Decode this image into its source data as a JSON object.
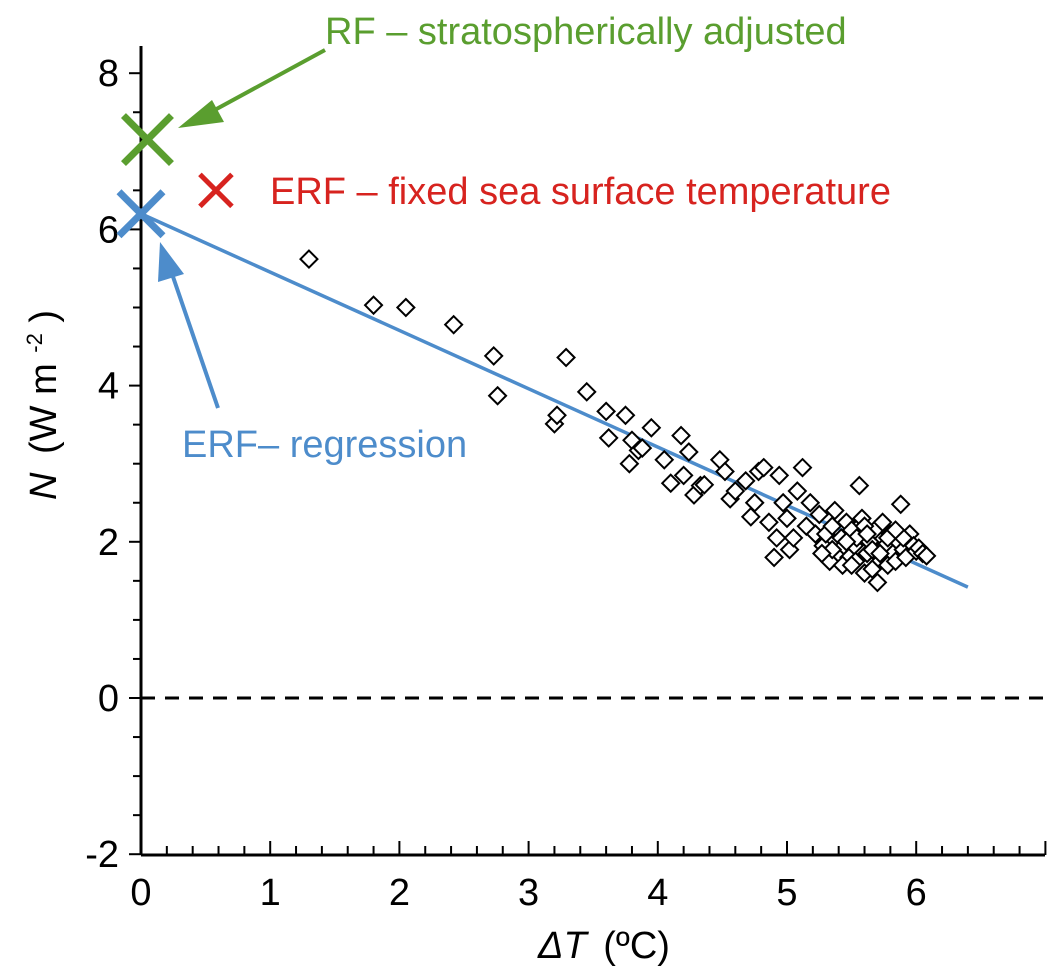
{
  "chart_data": {
    "type": "scatter",
    "xlabel": {
      "symbol": "ΔT",
      "unit": "(ºC)"
    },
    "ylabel": {
      "symbol": "N",
      "unit_pre": "(W m",
      "unit_sup": "-2",
      "unit_post": ")"
    },
    "xlim": [
      0,
      7
    ],
    "ylim": [
      -2,
      8.4
    ],
    "x_ticks": [
      0,
      1,
      2,
      3,
      4,
      5,
      6
    ],
    "y_ticks": [
      -2,
      0,
      2,
      4,
      6,
      8
    ],
    "x_tick_labels": [
      "0",
      "1",
      "2",
      "3",
      "4",
      "5",
      "6"
    ],
    "y_tick_labels": [
      "-2",
      "0",
      "2",
      "4",
      "6",
      "8"
    ],
    "zero_line": {
      "y": 0,
      "style": "dashed",
      "color": "#000000"
    },
    "regression_line": {
      "x": [
        0,
        6.4
      ],
      "y": [
        6.2,
        1.42
      ],
      "color": "#4d8ccb"
    },
    "markers": [
      {
        "name": "RF",
        "x": 0.05,
        "y": 7.15,
        "color": "#5a9e2f"
      },
      {
        "name": "ERF-fixed-SST",
        "x": 0.58,
        "y": 6.5,
        "color": "#d7231f"
      },
      {
        "name": "ERF-regression",
        "x": 0.0,
        "y": 6.2,
        "color": "#4d8ccb"
      }
    ],
    "annotations": [
      {
        "text": "RF – stratospherically adjusted",
        "color": "#5a9e2f"
      },
      {
        "text": "ERF – fixed sea surface temperature",
        "color": "#d7231f"
      },
      {
        "text": "ERF– regression",
        "color": "#4d8ccb"
      }
    ],
    "points": [
      [
        1.3,
        5.62
      ],
      [
        1.8,
        5.03
      ],
      [
        2.05,
        5.0
      ],
      [
        2.42,
        4.78
      ],
      [
        2.73,
        4.38
      ],
      [
        2.76,
        3.87
      ],
      [
        3.2,
        3.51
      ],
      [
        3.22,
        3.62
      ],
      [
        3.29,
        4.36
      ],
      [
        3.45,
        3.92
      ],
      [
        3.6,
        3.67
      ],
      [
        3.62,
        3.33
      ],
      [
        3.75,
        3.62
      ],
      [
        3.78,
        3.0
      ],
      [
        3.8,
        3.3
      ],
      [
        3.85,
        3.17
      ],
      [
        3.88,
        3.2
      ],
      [
        3.95,
        3.46
      ],
      [
        4.05,
        3.05
      ],
      [
        4.1,
        2.75
      ],
      [
        4.18,
        3.36
      ],
      [
        4.2,
        2.85
      ],
      [
        4.24,
        3.15
      ],
      [
        4.28,
        2.6
      ],
      [
        4.33,
        2.72
      ],
      [
        4.36,
        2.73
      ],
      [
        4.48,
        3.05
      ],
      [
        4.52,
        2.9
      ],
      [
        4.56,
        2.55
      ],
      [
        4.6,
        2.65
      ],
      [
        4.68,
        2.78
      ],
      [
        4.72,
        2.32
      ],
      [
        4.75,
        2.5
      ],
      [
        4.78,
        2.9
      ],
      [
        4.82,
        2.95
      ],
      [
        4.86,
        2.25
      ],
      [
        4.9,
        1.8
      ],
      [
        4.92,
        2.05
      ],
      [
        4.94,
        2.85
      ],
      [
        4.97,
        2.5
      ],
      [
        5.0,
        2.3
      ],
      [
        5.02,
        1.9
      ],
      [
        5.05,
        2.05
      ],
      [
        5.08,
        2.65
      ],
      [
        5.12,
        2.95
      ],
      [
        5.15,
        2.2
      ],
      [
        5.18,
        2.5
      ],
      [
        5.22,
        2.1
      ],
      [
        5.25,
        2.35
      ],
      [
        5.28,
        1.95
      ],
      [
        5.3,
        2.1
      ],
      [
        5.33,
        1.75
      ],
      [
        5.35,
        2.2
      ],
      [
        5.37,
        2.4
      ],
      [
        5.4,
        1.85
      ],
      [
        5.42,
        2.05
      ],
      [
        5.44,
        1.95
      ],
      [
        5.46,
        2.25
      ],
      [
        5.48,
        1.8
      ],
      [
        5.5,
        2.15
      ],
      [
        5.52,
        1.95
      ],
      [
        5.54,
        2.05
      ],
      [
        5.56,
        2.72
      ],
      [
        5.58,
        2.3
      ],
      [
        5.6,
        1.6
      ],
      [
        5.62,
        1.85
      ],
      [
        5.64,
        2.0
      ],
      [
        5.66,
        1.9
      ],
      [
        5.68,
        2.15
      ],
      [
        5.7,
        1.48
      ],
      [
        5.72,
        1.75
      ],
      [
        5.74,
        2.25
      ],
      [
        5.76,
        1.95
      ],
      [
        5.78,
        1.7
      ],
      [
        5.8,
        2.1
      ],
      [
        5.82,
        1.85
      ],
      [
        5.84,
        1.75
      ],
      [
        5.86,
        2.0
      ],
      [
        5.88,
        2.48
      ],
      [
        5.9,
        1.9
      ],
      [
        5.92,
        1.8
      ],
      [
        5.95,
        2.1
      ],
      [
        5.98,
        1.95
      ],
      [
        6.0,
        1.88
      ],
      [
        6.02,
        1.92
      ],
      [
        6.05,
        1.85
      ],
      [
        6.08,
        1.82
      ],
      [
        5.43,
        1.7
      ],
      [
        5.53,
        1.75
      ],
      [
        5.35,
        1.9
      ],
      [
        5.66,
        1.65
      ],
      [
        5.78,
        2.05
      ],
      [
        5.6,
        2.2
      ],
      [
        5.72,
        1.85
      ],
      [
        5.27,
        1.85
      ],
      [
        5.5,
        1.7
      ],
      [
        5.9,
        2.05
      ],
      [
        5.62,
        2.1
      ],
      [
        5.84,
        2.15
      ],
      [
        5.46,
        2.0
      ]
    ]
  }
}
